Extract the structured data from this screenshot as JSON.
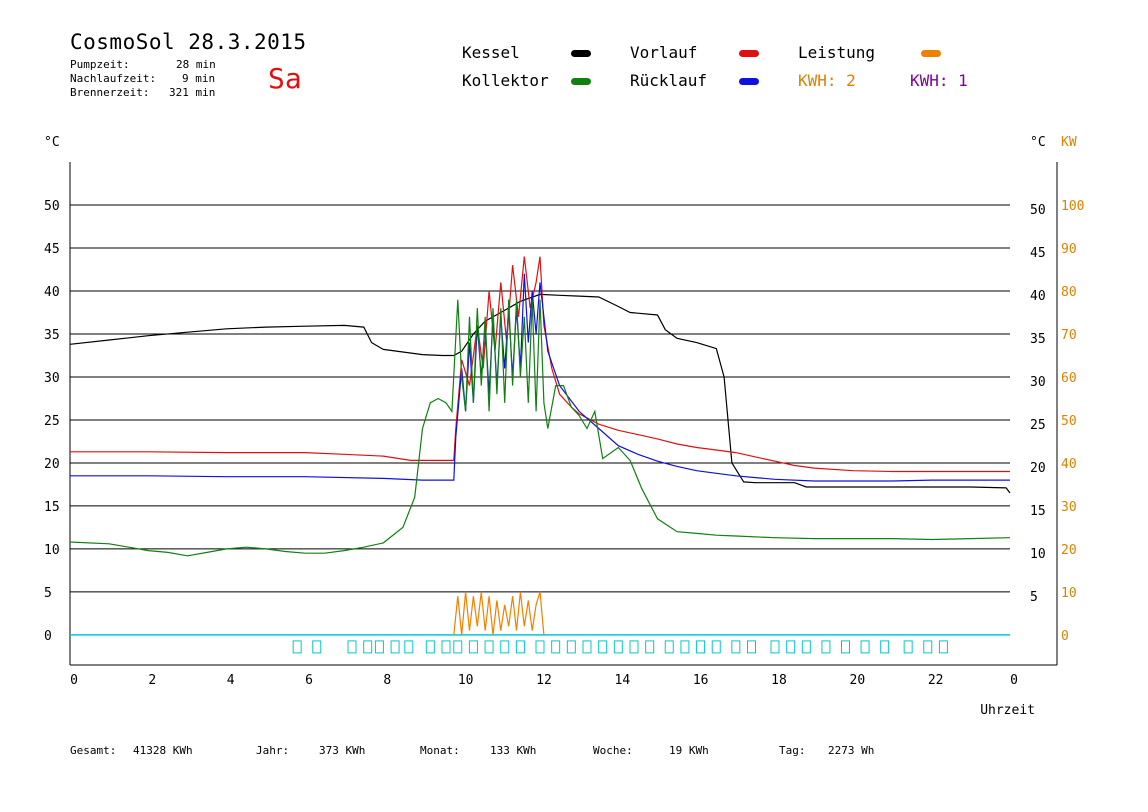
{
  "header": {
    "title": "CosmoSol 28.3.2015",
    "day": "Sa",
    "pumpzeit_label": "Pumpzeit:",
    "pumpzeit_value": "28 min",
    "nachlauf_label": "Nachlaufzeit:",
    "nachlauf_value": "9 min",
    "brenner_label": "Brennerzeit:",
    "brenner_value": "321 min"
  },
  "legend": [
    {
      "label": "Kessel",
      "color": "#000000"
    },
    {
      "label": "Vorlauf",
      "color": "#e01010"
    },
    {
      "label": "Leistung",
      "color": "#f08000"
    },
    {
      "label": "Kollektor",
      "color": "#108010"
    },
    {
      "label": "Rücklauf",
      "color": "#1010e0"
    }
  ],
  "kwh": [
    {
      "label": "KWH: 2",
      "color": "#e08000"
    },
    {
      "label": "KWH: 1",
      "color": "#8000a0"
    }
  ],
  "footer": {
    "gesamt_label": "Gesamt:",
    "gesamt_value": "41328 KWh",
    "jahr_label": "Jahr:",
    "jahr_value": "373 KWh",
    "monat_label": "Monat:",
    "monat_value": "133 KWh",
    "woche_label": "Woche:",
    "woche_value": "19 KWh",
    "tag_label": "Tag:",
    "tag_value": "2273 Wh"
  },
  "chart_data": {
    "type": "line",
    "xlabel": "Uhrzeit",
    "ylabel_left": "°C",
    "ylabel_right": "°C KW",
    "xlim": [
      0,
      24
    ],
    "ylim": [
      -3.5,
      55
    ],
    "y2lim": [
      -7,
      110
    ],
    "x_tick_labels": [
      "0",
      "2",
      "4",
      "6",
      "8",
      "10",
      "12",
      "14",
      "16",
      "18",
      "20",
      "22",
      "0"
    ],
    "y_ticks": [
      0,
      5,
      10,
      15,
      20,
      25,
      30,
      35,
      40,
      45,
      50
    ],
    "y2_ticks": [
      0,
      10,
      20,
      30,
      40,
      50,
      60,
      70,
      80,
      90,
      100
    ],
    "grid": true,
    "series": [
      {
        "name": "Kessel",
        "color": "#000000",
        "x": [
          0,
          1,
          2,
          3,
          4,
          5,
          6,
          7,
          7.5,
          7.7,
          8,
          8.5,
          9,
          9.5,
          9.8,
          10,
          10.3,
          10.6,
          11,
          11.5,
          12,
          12.5,
          13,
          13.5,
          14,
          14.3,
          15,
          15.2,
          15.5,
          16,
          16.5,
          16.7,
          16.9,
          17.2,
          17.5,
          18,
          18.5,
          18.8,
          19,
          20,
          21,
          22,
          23,
          23.9,
          24
        ],
        "y": [
          33.8,
          34.3,
          34.8,
          35.2,
          35.6,
          35.8,
          35.9,
          36,
          35.8,
          34,
          33.2,
          32.9,
          32.6,
          32.5,
          32.5,
          33,
          35,
          36.5,
          37.5,
          38.8,
          39.6,
          39.5,
          39.4,
          39.3,
          38.2,
          37.5,
          37.2,
          35.5,
          34.5,
          34,
          33.3,
          30,
          20,
          17.8,
          17.7,
          17.7,
          17.7,
          17.2,
          17.2,
          17.2,
          17.2,
          17.2,
          17.2,
          17.1,
          16.5
        ]
      },
      {
        "name": "Vorlauf",
        "color": "#e01010",
        "x": [
          0,
          2,
          4,
          6,
          7,
          8,
          8.7,
          9,
          9.8,
          9.85,
          10,
          10.2,
          10.4,
          10.55,
          10.7,
          10.85,
          11,
          11.15,
          11.3,
          11.45,
          11.6,
          11.75,
          11.9,
          12,
          12.1,
          12.3,
          12.5,
          12.8,
          13,
          13.5,
          14,
          14.5,
          15,
          15.5,
          16,
          16.5,
          17,
          17.5,
          18,
          18.5,
          19,
          20,
          21,
          22,
          23,
          24
        ],
        "y": [
          21.3,
          21.3,
          21.2,
          21.2,
          21,
          20.8,
          20.3,
          20.3,
          20.3,
          24,
          32,
          29,
          36,
          31,
          40,
          33,
          41,
          34,
          43,
          37,
          44,
          38,
          41,
          44,
          36,
          31,
          28,
          26.5,
          25.7,
          24.5,
          23.8,
          23.3,
          22.8,
          22.2,
          21.8,
          21.5,
          21.2,
          20.7,
          20.2,
          19.7,
          19.4,
          19.1,
          19,
          19,
          19,
          19
        ]
      },
      {
        "name": "Rücklauf",
        "color": "#1010e0",
        "x": [
          0,
          2,
          4,
          6,
          8,
          9,
          9.8,
          9.85,
          10,
          10.1,
          10.2,
          10.3,
          10.4,
          10.5,
          10.6,
          10.7,
          10.8,
          10.9,
          11,
          11.1,
          11.2,
          11.3,
          11.4,
          11.5,
          11.6,
          11.7,
          11.8,
          11.9,
          12,
          12.2,
          12.5,
          13,
          13.5,
          14,
          14.5,
          15,
          15.5,
          16,
          16.5,
          17,
          17.5,
          18,
          19,
          20,
          21,
          22,
          23,
          24
        ],
        "y": [
          18.5,
          18.5,
          18.4,
          18.4,
          18.2,
          18,
          18,
          23,
          31,
          26,
          34,
          27,
          36,
          30,
          36,
          28,
          37,
          29,
          37,
          31,
          38,
          30,
          38,
          31,
          42,
          34,
          40,
          35,
          41,
          33,
          29,
          26,
          24,
          22,
          21,
          20.2,
          19.6,
          19.1,
          18.8,
          18.5,
          18.3,
          18.1,
          17.9,
          17.9,
          17.9,
          18,
          18,
          18
        ]
      },
      {
        "name": "Kollektor",
        "color": "#108010",
        "x": [
          0,
          1,
          1.5,
          2,
          2.5,
          3,
          3.5,
          4,
          4.5,
          5,
          5.5,
          6,
          6.5,
          7,
          7.5,
          8,
          8.5,
          8.8,
          9,
          9.2,
          9.4,
          9.6,
          9.75,
          9.9,
          10,
          10.1,
          10.2,
          10.3,
          10.4,
          10.5,
          10.6,
          10.7,
          10.8,
          10.9,
          11,
          11.1,
          11.2,
          11.3,
          11.4,
          11.5,
          11.6,
          11.7,
          11.8,
          11.9,
          12,
          12.1,
          12.2,
          12.4,
          12.6,
          12.8,
          13,
          13.2,
          13.4,
          13.6,
          14,
          14.3,
          14.6,
          15,
          15.5,
          16,
          16.5,
          17,
          18,
          19,
          20,
          21,
          22,
          23,
          24
        ],
        "y": [
          10.8,
          10.6,
          10.2,
          9.8,
          9.6,
          9.2,
          9.6,
          10,
          10.2,
          10,
          9.7,
          9.5,
          9.5,
          9.8,
          10.2,
          10.7,
          12.5,
          16,
          24,
          27,
          27.5,
          27,
          26,
          39,
          30,
          26,
          37,
          27,
          38,
          29,
          37,
          26,
          38,
          28,
          38,
          27,
          39,
          29,
          39,
          30,
          37,
          27,
          39,
          26,
          39,
          27,
          24,
          29,
          29,
          26.5,
          25.5,
          24,
          26,
          20.5,
          21.8,
          20.3,
          17,
          13.5,
          12,
          11.8,
          11.6,
          11.5,
          11.3,
          11.2,
          11.2,
          11.2,
          11.1,
          11.2,
          11.3
        ]
      },
      {
        "name": "Leistung",
        "color": "#f08000",
        "axis": "right",
        "x": [
          9.8,
          9.9,
          10,
          10.1,
          10.2,
          10.3,
          10.4,
          10.5,
          10.6,
          10.7,
          10.8,
          10.9,
          11,
          11.1,
          11.2,
          11.3,
          11.4,
          11.5,
          11.6,
          11.7,
          11.8,
          11.9,
          12,
          12.1
        ],
        "y": [
          0,
          9,
          0,
          10,
          1,
          9,
          2,
          10,
          1,
          9,
          0,
          8,
          1,
          7,
          2,
          9,
          1,
          10,
          2,
          8,
          1,
          7,
          10,
          0
        ]
      }
    ],
    "pump_activity": {
      "color": "#00c8d0",
      "label": "pump-marker",
      "x": [
        5.8,
        6.3,
        7.2,
        7.6,
        7.9,
        8.3,
        8.65,
        9.2,
        9.6,
        9.9,
        10.3,
        10.7,
        11.1,
        11.5,
        12.0,
        12.4,
        12.8,
        13.2,
        13.6,
        14.0,
        14.4,
        14.8,
        15.3,
        15.7,
        16.1,
        16.5,
        17.0,
        17.4,
        18.0,
        18.4,
        18.8,
        19.3,
        19.8,
        20.3,
        20.8,
        21.4,
        21.9,
        22.3
      ]
    },
    "x_axis_note": "Uhrzeit"
  }
}
